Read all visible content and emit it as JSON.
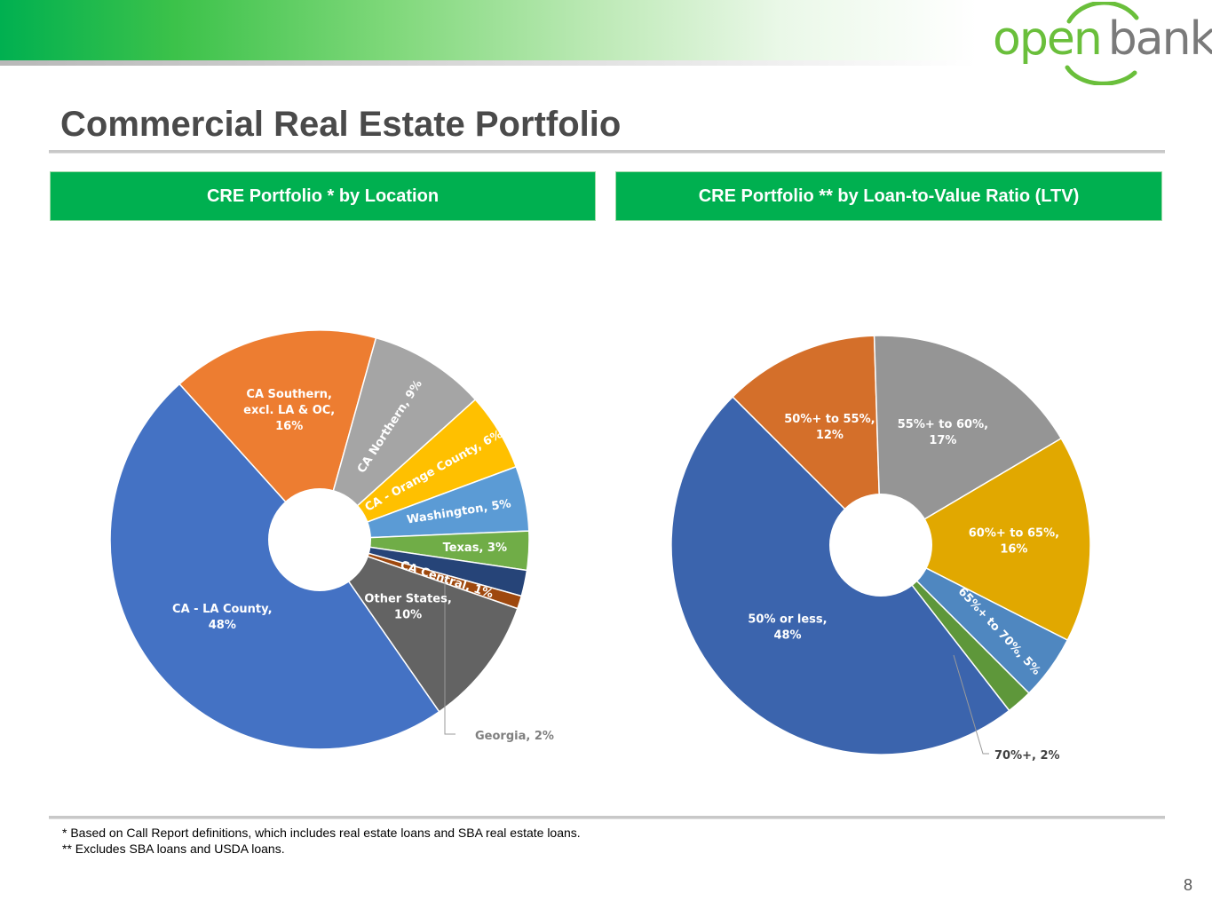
{
  "logo": {
    "open": "open",
    "bank": "bank"
  },
  "page_title": "Commercial Real Estate Portfolio",
  "panels": [
    {
      "header": "CRE Portfolio * by Location"
    },
    {
      "header": "CRE Portfolio ** by Loan-to-Value Ratio (LTV)"
    }
  ],
  "chart_data": [
    {
      "type": "pie",
      "title": "CRE Portfolio * by Location",
      "slices": [
        {
          "label": "CA Southern, excl. LA & OC",
          "value": 16,
          "display": [
            "CA Southern,",
            "excl. LA & OC,",
            "16%"
          ],
          "color": "#ed7d31",
          "label_color": "#ffffff"
        },
        {
          "label": "CA Northern",
          "value": 9,
          "display": [
            "CA Northern, 9%"
          ],
          "color": "#a5a5a5",
          "label_color": "#ffffff"
        },
        {
          "label": "CA - Orange County",
          "value": 6,
          "display": [
            "CA - Orange County, 6%"
          ],
          "color": "#ffc000",
          "label_color": "#ffffff"
        },
        {
          "label": "Washington",
          "value": 5,
          "display": [
            "Washington, 5%"
          ],
          "color": "#5b9bd5",
          "label_color": "#ffffff"
        },
        {
          "label": "Texas",
          "value": 3,
          "display": [
            "Texas, 3%"
          ],
          "color": "#70ad47",
          "label_color": "#ffffff"
        },
        {
          "label": "Georgia",
          "value": 2,
          "display": [
            "Georgia, 2%"
          ],
          "color": "#264478",
          "label_color": "#7f7f7f"
        },
        {
          "label": "CA Central",
          "value": 1,
          "display": [
            "CA Central, 1%"
          ],
          "color": "#9e480e",
          "label_color": "#ffffff"
        },
        {
          "label": "Other States",
          "value": 10,
          "display": [
            "Other States,",
            "10%"
          ],
          "color": "#636363",
          "label_color": "#ffffff"
        },
        {
          "label": "CA - LA County",
          "value": 48,
          "display": [
            "CA - LA County,",
            "48%"
          ],
          "color": "#4472c4",
          "label_color": "#ffffff"
        }
      ]
    },
    {
      "type": "pie",
      "title": "CRE Portfolio ** by Loan-to-Value Ratio (LTV)",
      "slices": [
        {
          "label": "50%+ to 55%",
          "value": 12,
          "display": [
            "50%+ to 55%,",
            "12%"
          ],
          "color": "#d46f2a",
          "label_color": "#ffffff"
        },
        {
          "label": "55%+ to 60%",
          "value": 17,
          "display": [
            "55%+ to 60%,",
            "17%"
          ],
          "color": "#959595",
          "label_color": "#ffffff"
        },
        {
          "label": "60%+ to 65%",
          "value": 16,
          "display": [
            "60%+ to 65%,",
            "16%"
          ],
          "color": "#e1a800",
          "label_color": "#ffffff"
        },
        {
          "label": "65%+ to 70%",
          "value": 5,
          "display": [
            "65%+ to 70%, 5%"
          ],
          "color": "#4f87c0",
          "label_color": "#ffffff"
        },
        {
          "label": "70%+",
          "value": 2,
          "display": [
            "70%+, 2%"
          ],
          "color": "#5e973a",
          "label_color": "#404040"
        },
        {
          "label": "50% or less",
          "value": 48,
          "display": [
            "50% or less,",
            "48%"
          ],
          "color": "#3b64ad",
          "label_color": "#ffffff"
        }
      ]
    }
  ],
  "footnotes": [
    "* Based on Call Report definitions, which includes real estate loans and SBA real estate loans.",
    "** Excludes SBA loans and USDA loans."
  ],
  "page_number": "8"
}
